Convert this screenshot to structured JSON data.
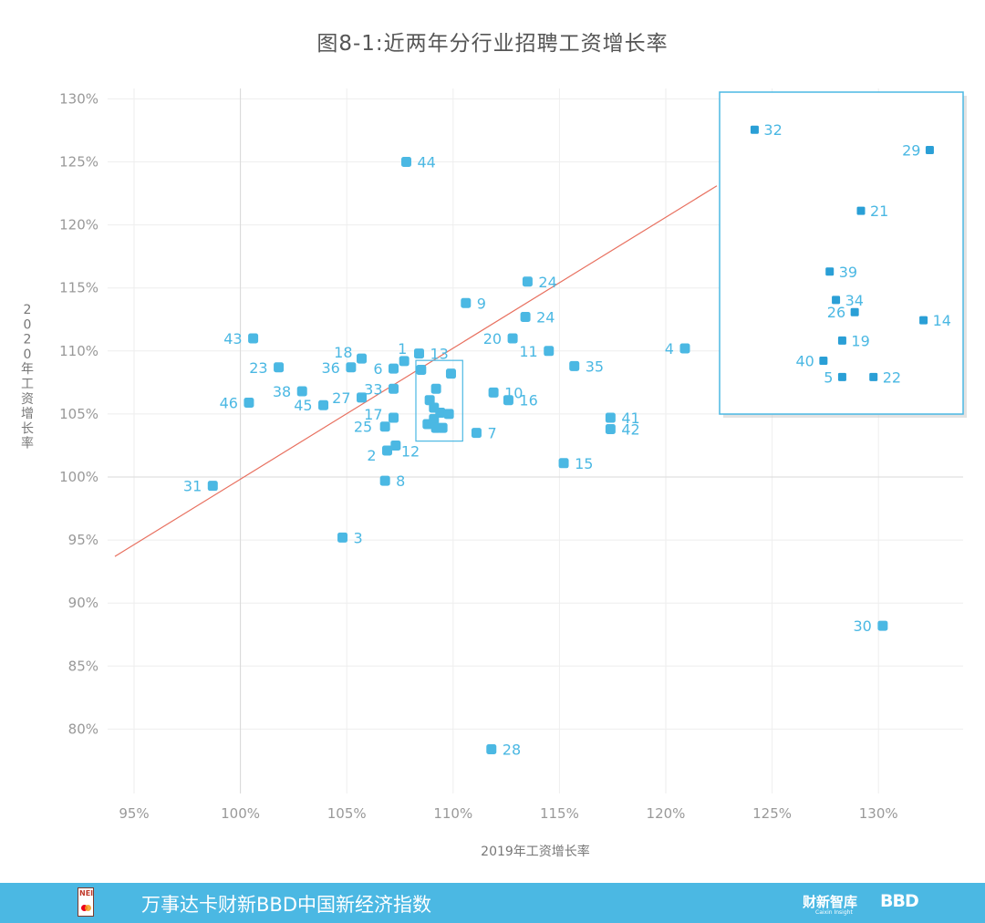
{
  "title": "图8-1:近两年分行业招聘工资增长率",
  "footer": {
    "brand_text": "万事达卡财新BBD中国新经济指数",
    "right_logo_1": "财新智库",
    "right_logo_1_sub": "Caixin Insight",
    "right_logo_2": "BBD",
    "left_logo_text": "NEI",
    "background_color": "#4bb8e3"
  },
  "chart_data": {
    "type": "scatter",
    "title": "图8-1:近两年分行业招聘工资增长率",
    "xlabel": "2019年工资增长率",
    "ylabel": "2020年工资增长率",
    "xlim": [
      0.94,
      1.34
    ],
    "ylim": [
      0.775,
      1.305
    ],
    "x_ticks": [
      {
        "value": 0.95,
        "label": "95%"
      },
      {
        "value": 1.0,
        "label": "100%"
      },
      {
        "value": 1.05,
        "label": "105%"
      },
      {
        "value": 1.1,
        "label": "110%"
      },
      {
        "value": 1.15,
        "label": "115%"
      },
      {
        "value": 1.2,
        "label": "120%"
      },
      {
        "value": 1.25,
        "label": "125%"
      },
      {
        "value": 1.3,
        "label": "130%"
      }
    ],
    "y_ticks": [
      {
        "value": 0.8,
        "label": "80%"
      },
      {
        "value": 0.85,
        "label": "85%"
      },
      {
        "value": 0.9,
        "label": "90%"
      },
      {
        "value": 0.95,
        "label": "95%"
      },
      {
        "value": 1.0,
        "label": "100%"
      },
      {
        "value": 1.05,
        "label": "105%"
      },
      {
        "value": 1.1,
        "label": "110%"
      },
      {
        "value": 1.15,
        "label": "115%"
      },
      {
        "value": 1.2,
        "label": "120%"
      },
      {
        "value": 1.25,
        "label": "125%"
      },
      {
        "value": 1.3,
        "label": "130%"
      }
    ],
    "grid": true,
    "reference_lines": {
      "x": 1.0,
      "y": 1.0
    },
    "trend_line": {
      "color": "#e8705f",
      "points": [
        [
          0.941,
          0.937
        ],
        [
          1.224,
          1.231
        ]
      ]
    },
    "point_color": "#4bb8e3",
    "points": [
      {
        "label": "44",
        "x": 1.078,
        "y": 1.25
      },
      {
        "label": "24",
        "x": 1.135,
        "y": 1.155
      },
      {
        "label": "9",
        "x": 1.106,
        "y": 1.138
      },
      {
        "label": "24",
        "x": 1.134,
        "y": 1.127
      },
      {
        "label": "43",
        "x": 1.006,
        "y": 1.11
      },
      {
        "label": "20",
        "x": 1.128,
        "y": 1.11
      },
      {
        "label": "1",
        "x": 1.077,
        "y": 1.092
      },
      {
        "label": "13",
        "x": 1.084,
        "y": 1.098
      },
      {
        "label": "11",
        "x": 1.145,
        "y": 1.1
      },
      {
        "label": "4",
        "x": 1.209,
        "y": 1.102
      },
      {
        "label": "18",
        "x": 1.057,
        "y": 1.094
      },
      {
        "label": "23",
        "x": 1.018,
        "y": 1.087
      },
      {
        "label": "36",
        "x": 1.052,
        "y": 1.087
      },
      {
        "label": "6",
        "x": 1.072,
        "y": 1.086
      },
      {
        "label": "35",
        "x": 1.157,
        "y": 1.088
      },
      {
        "label": "38",
        "x": 1.029,
        "y": 1.068
      },
      {
        "label": "33",
        "x": 1.072,
        "y": 1.07
      },
      {
        "label": "27",
        "x": 1.057,
        "y": 1.063
      },
      {
        "label": "10",
        "x": 1.119,
        "y": 1.067
      },
      {
        "label": "16",
        "x": 1.126,
        "y": 1.061
      },
      {
        "label": "46",
        "x": 1.004,
        "y": 1.059
      },
      {
        "label": "45",
        "x": 1.039,
        "y": 1.057
      },
      {
        "label": "17",
        "x": 1.072,
        "y": 1.047
      },
      {
        "label": "41",
        "x": 1.174,
        "y": 1.047
      },
      {
        "label": "25",
        "x": 1.068,
        "y": 1.04
      },
      {
        "label": "42",
        "x": 1.174,
        "y": 1.038
      },
      {
        "label": "7",
        "x": 1.111,
        "y": 1.035
      },
      {
        "label": "12",
        "x": 1.073,
        "y": 1.025
      },
      {
        "label": "2",
        "x": 1.069,
        "y": 1.021
      },
      {
        "label": "15",
        "x": 1.152,
        "y": 1.011
      },
      {
        "label": "31",
        "x": 0.987,
        "y": 0.993
      },
      {
        "label": "8",
        "x": 1.068,
        "y": 0.997
      },
      {
        "label": "3",
        "x": 1.048,
        "y": 0.952
      },
      {
        "label": "30",
        "x": 1.302,
        "y": 0.882
      },
      {
        "label": "28",
        "x": 1.118,
        "y": 0.784
      },
      {
        "label": "",
        "x": 1.085,
        "y": 1.085
      },
      {
        "label": "",
        "x": 1.099,
        "y": 1.082
      },
      {
        "label": "",
        "x": 1.092,
        "y": 1.07
      },
      {
        "label": "",
        "x": 1.089,
        "y": 1.061
      },
      {
        "label": "",
        "x": 1.091,
        "y": 1.055
      },
      {
        "label": "",
        "x": 1.094,
        "y": 1.051
      },
      {
        "label": "",
        "x": 1.098,
        "y": 1.05
      },
      {
        "label": "",
        "x": 1.091,
        "y": 1.046
      },
      {
        "label": "",
        "x": 1.088,
        "y": 1.042
      },
      {
        "label": "",
        "x": 1.092,
        "y": 1.039
      },
      {
        "label": "",
        "x": 1.095,
        "y": 1.039
      }
    ],
    "highlight_box": {
      "x": [
        1.0825,
        1.1045
      ],
      "y": [
        1.0285,
        1.0925
      ]
    },
    "inset": {
      "note": "magnified view of the clustered points inside the highlight box",
      "points": [
        {
          "label": "32",
          "x": 1.0845,
          "y": 1.088
        },
        {
          "label": "29",
          "x": 1.0985,
          "y": 1.0855
        },
        {
          "label": "21",
          "x": 1.093,
          "y": 1.078
        },
        {
          "label": "39",
          "x": 1.0905,
          "y": 1.0705
        },
        {
          "label": "34",
          "x": 1.091,
          "y": 1.067
        },
        {
          "label": "26",
          "x": 1.0925,
          "y": 1.0655
        },
        {
          "label": "14",
          "x": 1.098,
          "y": 1.0645
        },
        {
          "label": "19",
          "x": 1.0915,
          "y": 1.062
        },
        {
          "label": "40",
          "x": 1.09,
          "y": 1.0595
        },
        {
          "label": "5",
          "x": 1.0915,
          "y": 1.0575
        },
        {
          "label": "22",
          "x": 1.094,
          "y": 1.0575
        }
      ]
    }
  }
}
